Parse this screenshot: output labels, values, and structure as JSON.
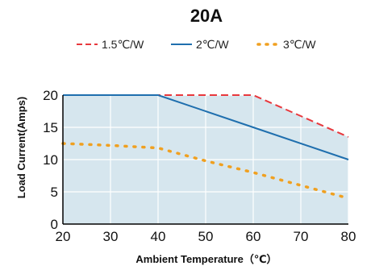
{
  "chart_data": {
    "type": "line",
    "title": "20A",
    "xlabel": "Ambient Temperature（℃）",
    "ylabel": "Load Current(Amps)",
    "xlim": [
      20,
      80
    ],
    "ylim": [
      0,
      20
    ],
    "xticks": [
      "20",
      "30",
      "40",
      "50",
      "60",
      "70",
      "80"
    ],
    "yticks": [
      "0",
      "5",
      "10",
      "15",
      "20"
    ],
    "grid": true,
    "legend_position": "top",
    "fill_under_max": true,
    "series": [
      {
        "name": "1.5℃/W",
        "style": "dashed",
        "color": "#e8383d",
        "points": [
          [
            20,
            20
          ],
          [
            60,
            20
          ],
          [
            80,
            13.5
          ]
        ]
      },
      {
        "name": "2℃/W",
        "style": "solid",
        "color": "#1f6fae",
        "points": [
          [
            20,
            20
          ],
          [
            40,
            20
          ],
          [
            60,
            15
          ],
          [
            80,
            10
          ]
        ]
      },
      {
        "name": "3℃/W",
        "style": "dotted",
        "color": "#f0a020",
        "points": [
          [
            20,
            12.5
          ],
          [
            30,
            12.2
          ],
          [
            40,
            11.8
          ],
          [
            50,
            9.8
          ],
          [
            60,
            8
          ],
          [
            70,
            6
          ],
          [
            80,
            4
          ]
        ]
      }
    ],
    "area_color": "#d6e6ee",
    "grid_color": "#ffffff",
    "axis_color": "#000000"
  }
}
